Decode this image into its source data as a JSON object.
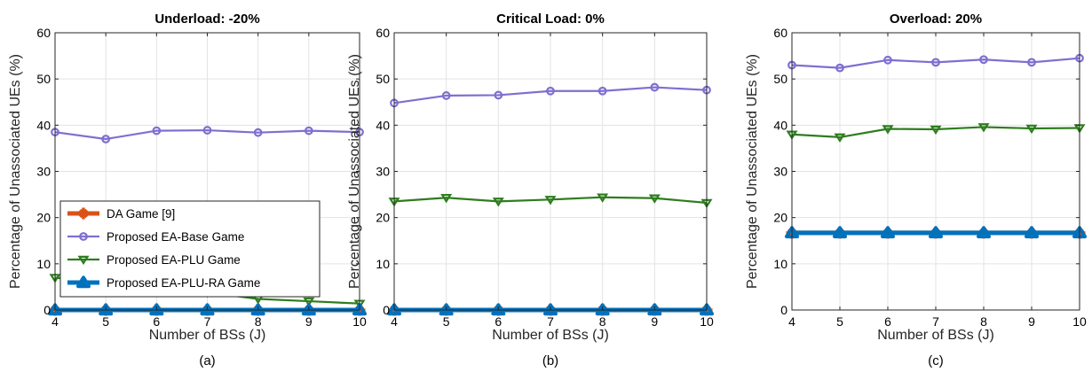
{
  "chart_data": [
    {
      "type": "line",
      "title": "Underload: -20%",
      "xlabel": "Number of BSs (J)",
      "ylabel": "Percentage of Unassociated UEs (%)",
      "caption": "(a)",
      "xlim": [
        4,
        10
      ],
      "ylim": [
        0,
        60
      ],
      "x": [
        4,
        5,
        6,
        7,
        8,
        9,
        10
      ],
      "grid": true,
      "legend": "inside-left",
      "series": [
        {
          "name": "DA Game [9]",
          "values": [
            0,
            0,
            0,
            0,
            0,
            0,
            0
          ]
        },
        {
          "name": "Proposed EA-Base Game",
          "values": [
            38.5,
            37.0,
            38.8,
            38.9,
            38.4,
            38.8,
            38.5
          ]
        },
        {
          "name": "Proposed EA-PLU Game",
          "values": [
            7.0,
            5.9,
            4.9,
            3.8,
            2.4,
            1.9,
            1.4
          ]
        },
        {
          "name": "Proposed EA-PLU-RA Game",
          "values": [
            0,
            0,
            0,
            0,
            0,
            0,
            0
          ]
        }
      ]
    },
    {
      "type": "line",
      "title": "Critical Load: 0%",
      "xlabel": "Number of BSs (J)",
      "ylabel": "Percentage of Unassociated UEs (%)",
      "caption": "(b)",
      "xlim": [
        4,
        10
      ],
      "ylim": [
        0,
        60
      ],
      "x": [
        4,
        5,
        6,
        7,
        8,
        9,
        10
      ],
      "grid": true,
      "series": [
        {
          "name": "DA Game [9]",
          "values": [
            0,
            0,
            0,
            0,
            0,
            0,
            0
          ]
        },
        {
          "name": "Proposed EA-Base Game",
          "values": [
            44.8,
            46.4,
            46.5,
            47.4,
            47.4,
            48.2,
            47.6
          ]
        },
        {
          "name": "Proposed EA-PLU Game",
          "values": [
            23.5,
            24.3,
            23.5,
            23.9,
            24.4,
            24.2,
            23.2
          ]
        },
        {
          "name": "Proposed EA-PLU-RA Game",
          "values": [
            0,
            0,
            0,
            0,
            0,
            0,
            0
          ]
        }
      ]
    },
    {
      "type": "line",
      "title": "Overload: 20%",
      "xlabel": "Number of BSs (J)",
      "ylabel": "Percentage of Unassociated UEs (%)",
      "caption": "(c)",
      "xlim": [
        4,
        10
      ],
      "ylim": [
        0,
        60
      ],
      "x": [
        4,
        5,
        6,
        7,
        8,
        9,
        10
      ],
      "grid": true,
      "series": [
        {
          "name": "DA Game [9]",
          "values": [
            16.7,
            16.7,
            16.7,
            16.7,
            16.7,
            16.7,
            16.7
          ]
        },
        {
          "name": "Proposed EA-Base Game",
          "values": [
            53.0,
            52.4,
            54.1,
            53.6,
            54.2,
            53.6,
            54.5
          ]
        },
        {
          "name": "Proposed EA-PLU Game",
          "values": [
            38.0,
            37.4,
            39.2,
            39.1,
            39.6,
            39.3,
            39.4
          ]
        },
        {
          "name": "Proposed EA-PLU-RA Game",
          "values": [
            16.7,
            16.7,
            16.7,
            16.7,
            16.7,
            16.7,
            16.7
          ]
        }
      ]
    }
  ],
  "legend_labels": [
    "DA Game [9]",
    "Proposed EA-Base Game",
    "Proposed EA-PLU Game",
    "Proposed EA-PLU-RA Game"
  ],
  "colors": {
    "da": "#d95319",
    "base": "#7e6fd1",
    "plu": "#2e7d1e",
    "plura": "#0072bd",
    "grid": "#e3e3e3",
    "axis": "#262626"
  }
}
